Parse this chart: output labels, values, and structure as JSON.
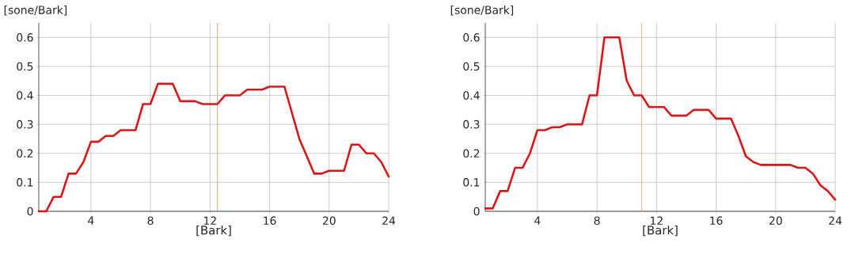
{
  "chart_data": [
    {
      "type": "line",
      "ylabel": "[sone/Bark]",
      "xlabel": "[Bark]",
      "xlim": [
        0.5,
        24
      ],
      "ylim": [
        0,
        0.65
      ],
      "xticks": [
        4,
        8,
        12,
        16,
        20,
        24
      ],
      "yticks": [
        0,
        0.1,
        0.2,
        0.3,
        0.4,
        0.5,
        0.6
      ],
      "grid": true,
      "marker": "none",
      "line_style": "solid",
      "x": [
        0.5,
        1,
        1.5,
        2,
        2.5,
        3,
        3.5,
        4,
        4.5,
        5,
        5.5,
        6,
        7,
        7.5,
        8,
        8.5,
        9.5,
        10,
        11,
        11.5,
        12.5,
        13,
        14,
        14.5,
        15.5,
        16,
        17,
        17.5,
        18,
        19,
        19.5,
        20,
        21,
        21.5,
        22,
        22.5,
        23,
        23.5,
        24
      ],
      "series": [
        {
          "color": "#d81818",
          "values": [
            0,
            0,
            0.05,
            0.05,
            0.13,
            0.13,
            0.17,
            0.24,
            0.24,
            0.26,
            0.26,
            0.28,
            0.28,
            0.37,
            0.37,
            0.44,
            0.44,
            0.38,
            0.38,
            0.37,
            0.37,
            0.4,
            0.4,
            0.42,
            0.42,
            0.43,
            0.43,
            0.34,
            0.25,
            0.13,
            0.13,
            0.14,
            0.14,
            0.23,
            0.23,
            0.2,
            0.2,
            0.17,
            0.12
          ]
        }
      ],
      "ref_lines": [
        {
          "axis": "x",
          "value": 12.5,
          "color": "#c89060"
        }
      ]
    },
    {
      "type": "line",
      "ylabel": "[sone/Bark]",
      "xlabel": "[Bark]",
      "xlim": [
        0.5,
        24
      ],
      "ylim": [
        0,
        0.65
      ],
      "xticks": [
        4,
        8,
        12,
        16,
        20,
        24
      ],
      "yticks": [
        0,
        0.1,
        0.2,
        0.3,
        0.4,
        0.5,
        0.6
      ],
      "grid": true,
      "marker": "none",
      "line_style": "solid",
      "x": [
        0.5,
        1,
        1.5,
        2,
        2.5,
        3,
        3.5,
        4,
        4.5,
        5,
        5.5,
        6,
        7,
        7.5,
        8,
        8.5,
        9.5,
        10,
        10.5,
        11,
        11.5,
        12.5,
        13,
        14,
        14.5,
        15.5,
        16,
        17,
        17.5,
        18,
        18.5,
        19,
        19.5,
        21,
        21.5,
        22,
        22.5,
        23,
        23.5,
        24
      ],
      "series": [
        {
          "color": "#d81818",
          "values": [
            0.01,
            0.01,
            0.07,
            0.07,
            0.15,
            0.15,
            0.2,
            0.28,
            0.28,
            0.29,
            0.29,
            0.3,
            0.3,
            0.4,
            0.4,
            0.6,
            0.6,
            0.45,
            0.4,
            0.4,
            0.36,
            0.36,
            0.33,
            0.33,
            0.35,
            0.35,
            0.32,
            0.32,
            0.26,
            0.19,
            0.17,
            0.16,
            0.16,
            0.16,
            0.15,
            0.15,
            0.13,
            0.09,
            0.07,
            0.04
          ]
        }
      ],
      "ref_lines": [
        {
          "axis": "x",
          "value": 11,
          "color": "#f0a080"
        }
      ]
    }
  ]
}
